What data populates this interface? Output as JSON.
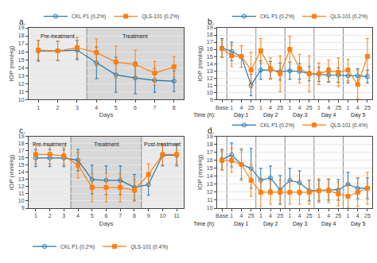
{
  "chart_data": [
    {
      "type": "line",
      "title": "a.",
      "x_label": "Days",
      "y_label": "IOP (mmHg)",
      "x": [
        1,
        2,
        3,
        4,
        5,
        6,
        7,
        8
      ],
      "xlim": [
        0.5,
        8.5
      ],
      "xticks": [
        1,
        2,
        3,
        4,
        5,
        6,
        7,
        8
      ],
      "ylim": [
        10,
        19
      ],
      "yticks": [
        10,
        11,
        12,
        13,
        14,
        15,
        16,
        17,
        18,
        19
      ],
      "grid": "y",
      "legend": "upper right",
      "series": [
        {
          "name": "CKL P1 (0.2%)",
          "color": "#1f77b4",
          "marker": "circle-open",
          "values": [
            16.1,
            16.1,
            16.2,
            14.6,
            13.1,
            12.7,
            12.4,
            12.3
          ],
          "errors": [
            1.3,
            1.2,
            1.2,
            2.0,
            2.2,
            2.0,
            1.5,
            1.3
          ]
        },
        {
          "name": "QLS-101 (0.2%)",
          "color": "#ff7f0e",
          "marker": "square",
          "values": [
            16.2,
            16.1,
            16.5,
            15.9,
            14.7,
            14.4,
            13.3,
            14.1
          ],
          "errors": [
            1.2,
            1.2,
            1.3,
            1.7,
            2.0,
            1.8,
            1.5,
            1.3
          ]
        }
      ],
      "regions": [
        {
          "x0": 0.5,
          "x1": 3.5,
          "color": "#ebebeb"
        },
        {
          "x0": 3.5,
          "x1": 8.5,
          "color": "#d8d8d8"
        }
      ],
      "vertical_lines": [
        {
          "x": 3.5,
          "color": "#888888"
        }
      ],
      "annotations": [
        {
          "text": "Pre-treatment",
          "x": 2.0,
          "y": 18.5
        },
        {
          "text": "Treatment",
          "x": 6.0,
          "y": 18.5
        }
      ]
    },
    {
      "type": "line",
      "title": "b.",
      "y_label": "IOP (mmHg)",
      "categories": [
        "Base",
        "1",
        "4",
        "25",
        "1",
        "4",
        "25",
        "1",
        "4",
        "25",
        "1",
        "4",
        "25",
        "1",
        "4",
        "25"
      ],
      "ylim": [
        9,
        19
      ],
      "yticks": [
        9,
        10,
        11,
        12,
        13,
        14,
        15,
        16,
        17,
        18,
        19
      ],
      "grid": "y",
      "legend": "upper right",
      "series": [
        {
          "name": "CKL P1 (0.2%)",
          "color": "#1f77b4",
          "marker": "circle-open",
          "values": [
            16.2,
            15.7,
            15.0,
            11.0,
            13.1,
            13.1,
            12.9,
            13.0,
            12.9,
            12.6,
            12.5,
            12.4,
            12.4,
            12.3,
            12.3,
            12.2
          ],
          "errors": [
            1.3,
            1.3,
            1.5,
            1.5,
            1.3,
            1.2,
            1.2,
            1.2,
            1.1,
            1.0,
            1.0,
            1.0,
            1.0,
            1.0,
            1.0,
            0.9
          ]
        },
        {
          "name": "QLS-101 (0.2%)",
          "color": "#ff7f0e",
          "marker": "square",
          "values": [
            16.1,
            15.1,
            15.0,
            13.1,
            15.8,
            13.3,
            12.6,
            16.0,
            13.3,
            12.6,
            12.6,
            13.0,
            12.8,
            13.1,
            11.1,
            15.0
          ],
          "errors": [
            1.2,
            1.5,
            1.5,
            2.5,
            1.7,
            1.5,
            2.5,
            1.8,
            2.0,
            2.5,
            1.5,
            1.5,
            2.0,
            1.5,
            2.0,
            2.5
          ]
        }
      ],
      "vertical_lines": [
        {
          "x": 0.5,
          "color": "#888888"
        },
        {
          "x": 3.5,
          "color": "#888888"
        },
        {
          "x": 6.5,
          "color": "#888888"
        },
        {
          "x": 9.5,
          "color": "#888888"
        },
        {
          "x": 12.5,
          "color": "#888888"
        }
      ],
      "annotations": [
        {
          "text": "Day 1",
          "x": 2
        },
        {
          "text": "Day 2",
          "x": 5
        },
        {
          "text": "Day 3",
          "x": 8
        },
        {
          "text": "Day 4",
          "x": 11
        },
        {
          "text": "Day 5",
          "x": 14
        },
        {
          "text": "Time (h):",
          "x": -0.5
        }
      ]
    },
    {
      "type": "line",
      "title": "c.",
      "x_label": "Days",
      "y_label": "IOP (mmHg)",
      "x": [
        1,
        2,
        3,
        4,
        5,
        6,
        7,
        8,
        9,
        10,
        11
      ],
      "xlim": [
        0.5,
        11.5
      ],
      "xticks": [
        1,
        2,
        3,
        4,
        5,
        6,
        7,
        8,
        9,
        10,
        11
      ],
      "ylim": [
        9,
        19
      ],
      "yticks": [
        9,
        10,
        11,
        12,
        13,
        14,
        15,
        16,
        17,
        18,
        19
      ],
      "grid": "y",
      "legend": "lower left",
      "series": [
        {
          "name": "CKL P1 (0.2%)",
          "color": "#1f77b4",
          "marker": "circle-open",
          "values": [
            16.0,
            16.0,
            16.0,
            15.7,
            13.0,
            12.9,
            12.9,
            11.9,
            12.3,
            16.4,
            16.4
          ],
          "errors": [
            1.2,
            1.2,
            1.2,
            1.5,
            2.0,
            2.0,
            2.0,
            1.8,
            1.5,
            1.5,
            1.5
          ]
        },
        {
          "name": "QLS-101 (0.4%)",
          "color": "#ff7f0e",
          "marker": "square",
          "values": [
            16.5,
            16.5,
            16.3,
            15.0,
            11.9,
            11.9,
            11.9,
            11.5,
            13.7,
            16.5,
            16.5
          ],
          "errors": [
            1.3,
            1.3,
            1.2,
            1.8,
            2.0,
            2.0,
            2.0,
            1.5,
            1.5,
            1.5,
            1.3
          ]
        }
      ],
      "regions": [
        {
          "x0": 0.5,
          "x1": 3.5,
          "color": "#ebebeb"
        },
        {
          "x0": 3.5,
          "x1": 8.5,
          "color": "#d8d8d8"
        },
        {
          "x0": 8.5,
          "x1": 11.5,
          "color": "#ebebeb"
        }
      ],
      "vertical_lines": [
        {
          "x": 3.5,
          "color": "#888888"
        },
        {
          "x": 8.5,
          "color": "#888888"
        }
      ],
      "annotations": [
        {
          "text": "Pre-treatment",
          "x": 2.0,
          "y": 18.5
        },
        {
          "text": "Treatment",
          "x": 6.0,
          "y": 18.5
        },
        {
          "text": "Post-treatment",
          "x": 10.0,
          "y": 18.5
        }
      ]
    },
    {
      "type": "line",
      "title": "d.",
      "y_label": "IOP (mmHg)",
      "categories": [
        "Base",
        "1",
        "4",
        "25",
        "1",
        "4",
        "25",
        "1",
        "4",
        "25",
        "1",
        "4",
        "25",
        "1",
        "4",
        "25"
      ],
      "ylim": [
        10,
        19
      ],
      "yticks": [
        10,
        11,
        12,
        13,
        14,
        15,
        16,
        17,
        18,
        19
      ],
      "grid": "y",
      "legend": "upper right",
      "series": [
        {
          "name": "CKL P1 (0.2%)",
          "color": "#1f77b4",
          "marker": "circle-open",
          "values": [
            16.1,
            16.7,
            15.5,
            15.0,
            13.5,
            13.8,
            12.3,
            13.5,
            13.2,
            12.2,
            12.2,
            12.3,
            12.3,
            13.0,
            12.5,
            12.5
          ],
          "errors": [
            1.3,
            1.5,
            1.8,
            2.5,
            1.5,
            1.5,
            1.8,
            1.5,
            1.5,
            1.3,
            1.3,
            1.3,
            1.3,
            1.5,
            1.3,
            1.3
          ]
        },
        {
          "name": "QLS-101 (0.4%)",
          "color": "#ff7f0e",
          "marker": "square",
          "values": [
            16.0,
            16.0,
            15.5,
            13.5,
            12.0,
            12.0,
            12.0,
            12.0,
            12.0,
            12.0,
            12.2,
            12.2,
            11.8,
            11.5,
            12.0,
            12.5
          ],
          "errors": [
            1.2,
            1.5,
            2.0,
            2.0,
            1.8,
            1.5,
            1.5,
            1.5,
            1.5,
            1.5,
            1.5,
            1.5,
            1.5,
            1.5,
            1.8,
            2.0
          ]
        }
      ],
      "vertical_lines": [
        {
          "x": 0.5,
          "color": "#888888"
        },
        {
          "x": 3.5,
          "color": "#888888"
        },
        {
          "x": 6.5,
          "color": "#888888"
        },
        {
          "x": 9.5,
          "color": "#888888"
        },
        {
          "x": 12.5,
          "color": "#888888"
        }
      ],
      "annotations": [
        {
          "text": "Day 1",
          "x": 2
        },
        {
          "text": "Day 2",
          "x": 5
        },
        {
          "text": "Day 3",
          "x": 8
        },
        {
          "text": "Day 4",
          "x": 11
        },
        {
          "text": "Day 5",
          "x": 14
        },
        {
          "text": "Time (h):",
          "x": -0.5
        }
      ]
    }
  ]
}
